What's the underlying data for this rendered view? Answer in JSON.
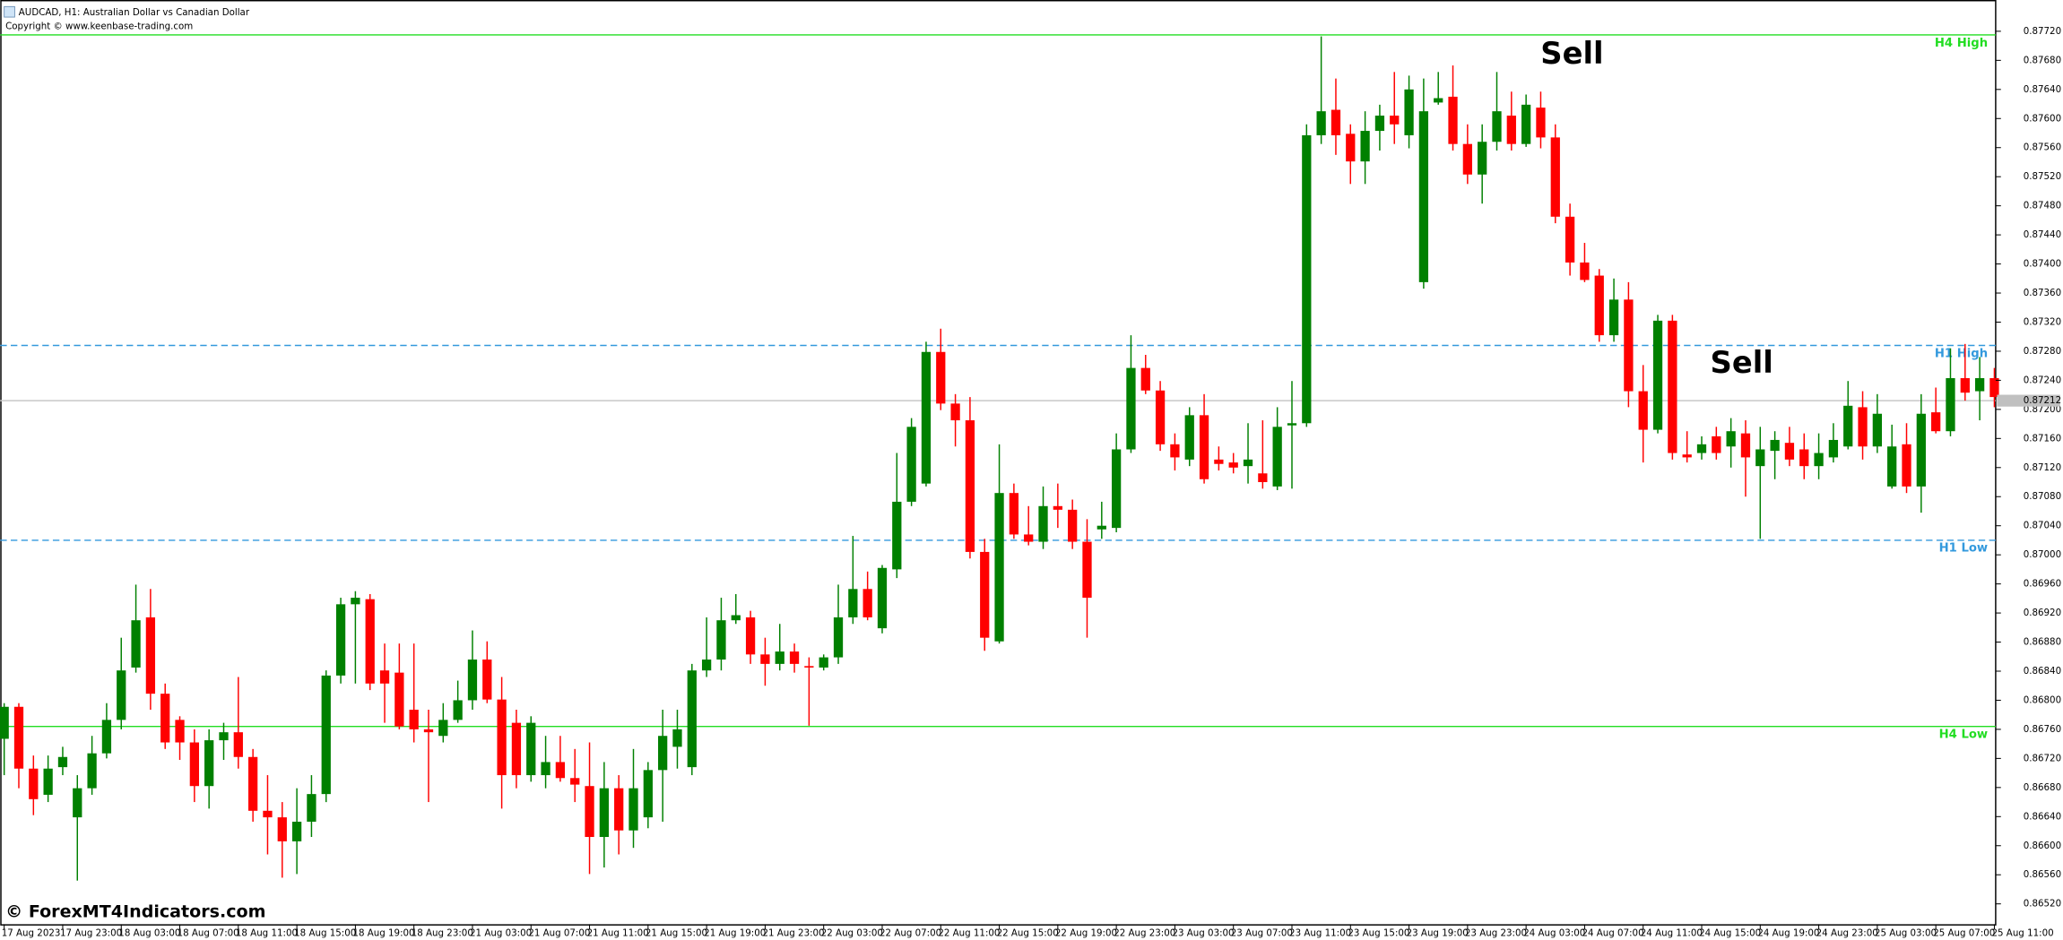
{
  "chart_data": {
    "type": "candlestick",
    "title": "AUDCAD, H1:  Australian Dollar vs Canadian Dollar",
    "subtitle": "Copyright © www.keenbase-trading.com",
    "watermark": "© ForexMT4Indicators.com",
    "sell_labels": [
      "Sell",
      "Sell"
    ],
    "up_color": "#008000",
    "down_color": "#ff0000",
    "categories": [
      "17 Aug 2023",
      null,
      null,
      null,
      "17 Aug 23:00",
      null,
      null,
      null,
      "18 Aug 03:00",
      null,
      null,
      null,
      "18 Aug 07:00",
      null,
      null,
      null,
      "18 Aug 11:00",
      null,
      null,
      null,
      "18 Aug 15:00",
      null,
      null,
      null,
      "18 Aug 19:00",
      null,
      null,
      null,
      "18 Aug 23:00",
      null,
      null,
      null,
      "21 Aug 03:00",
      null,
      null,
      null,
      "21 Aug 07:00",
      null,
      null,
      null,
      "21 Aug 11:00",
      null,
      null,
      null,
      "21 Aug 15:00",
      null,
      null,
      null,
      "21 Aug 19:00",
      null,
      null,
      null,
      "21 Aug 23:00",
      null,
      null,
      null,
      "22 Aug 03:00",
      null,
      null,
      null,
      "22 Aug 07:00",
      null,
      null,
      null,
      "22 Aug 11:00",
      null,
      null,
      null,
      "22 Aug 15:00",
      null,
      null,
      null,
      "22 Aug 19:00",
      null,
      null,
      null,
      "22 Aug 23:00",
      null,
      null,
      null,
      "23 Aug 03:00",
      null,
      null,
      null,
      "23 Aug 07:00",
      null,
      null,
      null,
      "23 Aug 11:00",
      null,
      null,
      null,
      "23 Aug 15:00",
      null,
      null,
      null,
      "23 Aug 19:00",
      null,
      null,
      null,
      "23 Aug 23:00",
      null,
      null,
      null,
      "24 Aug 03:00",
      null,
      null,
      null,
      "24 Aug 07:00",
      null,
      null,
      null,
      "24 Aug 11:00",
      null,
      null,
      null,
      "24 Aug 15:00",
      null,
      null,
      null,
      "24 Aug 19:00",
      null,
      null,
      null,
      "24 Aug 23:00",
      null,
      null,
      null,
      "25 Aug 03:00",
      null,
      null,
      null,
      "25 Aug 07:00",
      null,
      null,
      null,
      "25 Aug 11:00"
    ],
    "open": [
      0.86747,
      0.86791,
      0.86706,
      0.8667,
      0.86708,
      0.86639,
      0.86679,
      0.86727,
      0.86773,
      0.86845,
      0.86914,
      0.86809,
      0.86773,
      0.86742,
      0.86682,
      0.86745,
      0.86756,
      0.86722,
      0.86648,
      0.86639,
      0.86606,
      0.86633,
      0.86671,
      0.86834,
      0.86932,
      0.86939,
      0.86841,
      0.86838,
      0.86787,
      0.8676,
      0.86751,
      0.86773,
      0.868,
      0.86856,
      0.86801,
      0.86769,
      0.86697,
      0.86697,
      0.86715,
      0.86693,
      0.86682,
      0.86612,
      0.86679,
      0.86621,
      0.86639,
      0.86704,
      0.86736,
      0.86708,
      0.86841,
      0.86856,
      0.8691,
      0.86914,
      0.86863,
      0.8685,
      0.86867,
      0.86847,
      0.86845,
      0.86859,
      0.86914,
      0.86953,
      0.86899,
      0.8698,
      0.87073,
      0.87098,
      0.87279,
      0.87208,
      0.87185,
      0.87004,
      0.86881,
      0.87085,
      0.87028,
      0.87018,
      0.87067,
      0.87062,
      0.87018,
      0.87035,
      0.87037,
      0.87145,
      0.87257,
      0.87226,
      0.87152,
      0.87131,
      0.87192,
      0.87131,
      0.87127,
      0.87122,
      0.87112,
      0.87094,
      0.87178,
      0.87181,
      0.87577,
      0.87612,
      0.87579,
      0.87541,
      0.87583,
      0.87604,
      0.87577,
      0.87375,
      0.87622,
      0.8763,
      0.87565,
      0.87523,
      0.87568,
      0.87604,
      0.87565,
      0.87615,
      0.87574,
      0.87465,
      0.87402,
      0.87384,
      0.87302,
      0.87351,
      0.87225,
      0.87172,
      0.87322,
      0.87138,
      0.8714,
      0.87163,
      0.87149,
      0.87167,
      0.87122,
      0.87143,
      0.87154,
      0.87145,
      0.87122,
      0.87134,
      0.87149,
      0.87203,
      0.87149,
      0.87094,
      0.87152,
      0.87094,
      0.87196,
      0.8717,
      0.87243,
      0.87225,
      0.87243
    ],
    "high": [
      0.86796,
      0.86796,
      0.86724,
      0.86724,
      0.86736,
      0.86697,
      0.86751,
      0.86796,
      0.86886,
      0.86959,
      0.86953,
      0.86823,
      0.86778,
      0.8676,
      0.8676,
      0.86769,
      0.86832,
      0.86733,
      0.86697,
      0.8666,
      0.86679,
      0.86697,
      0.86841,
      0.86941,
      0.8695,
      0.86946,
      0.86878,
      0.86878,
      0.86878,
      0.86787,
      0.86796,
      0.86827,
      0.86896,
      0.86881,
      0.86832,
      0.86787,
      0.86778,
      0.86751,
      0.86751,
      0.86733,
      0.86742,
      0.86715,
      0.86697,
      0.86733,
      0.86715,
      0.86787,
      0.86787,
      0.8685,
      0.86914,
      0.86941,
      0.86946,
      0.86923,
      0.86886,
      0.86905,
      0.86878,
      0.86859,
      0.86863,
      0.86959,
      0.87026,
      0.86977,
      0.86986,
      0.8714,
      0.87188,
      0.87293,
      0.87311,
      0.87221,
      0.87217,
      0.87022,
      0.87152,
      0.87098,
      0.87067,
      0.87094,
      0.87098,
      0.87076,
      0.87049,
      0.87073,
      0.87167,
      0.87302,
      0.87275,
      0.87239,
      0.87167,
      0.87203,
      0.87221,
      0.87149,
      0.8714,
      0.87181,
      0.87185,
      0.87203,
      0.87239,
      0.87592,
      0.87713,
      0.87655,
      0.87592,
      0.8761,
      0.87619,
      0.87664,
      0.87659,
      0.87655,
      0.87664,
      0.87673,
      0.87592,
      0.87592,
      0.87664,
      0.87637,
      0.87633,
      0.87637,
      0.87592,
      0.87483,
      0.87429,
      0.87393,
      0.8738,
      0.87375,
      0.87261,
      0.8733,
      0.8733,
      0.8717,
      0.87163,
      0.87176,
      0.87188,
      0.87185,
      0.87176,
      0.8717,
      0.87176,
      0.87167,
      0.87167,
      0.87181,
      0.87239,
      0.87225,
      0.87221,
      0.87179,
      0.87181,
      0.87221,
      0.8723,
      0.87284,
      0.8729,
      0.87272,
      0.87257
    ],
    "low": [
      0.86697,
      0.86679,
      0.86642,
      0.8666,
      0.86697,
      0.86552,
      0.8667,
      0.8672,
      0.8676,
      0.86838,
      0.86787,
      0.86733,
      0.86718,
      0.8666,
      0.86651,
      0.86718,
      0.86706,
      0.86633,
      0.86588,
      0.86556,
      0.86561,
      0.86612,
      0.8666,
      0.86823,
      0.86823,
      0.86814,
      0.86769,
      0.8676,
      0.86742,
      0.8666,
      0.86742,
      0.86769,
      0.86787,
      0.86796,
      0.86651,
      0.86679,
      0.86688,
      0.86679,
      0.86688,
      0.8666,
      0.86561,
      0.8657,
      0.86588,
      0.86597,
      0.86624,
      0.86633,
      0.86706,
      0.86697,
      0.86832,
      0.86841,
      0.86905,
      0.8685,
      0.8682,
      0.86841,
      0.86838,
      0.86765,
      0.86841,
      0.8685,
      0.86905,
      0.8691,
      0.86892,
      0.86968,
      0.87067,
      0.87094,
      0.87199,
      0.87149,
      0.86995,
      0.86868,
      0.86878,
      0.87022,
      0.87013,
      0.87008,
      0.87037,
      0.87008,
      0.86886,
      0.87022,
      0.87031,
      0.8714,
      0.87221,
      0.87143,
      0.87116,
      0.87122,
      0.87098,
      0.87116,
      0.87112,
      0.87098,
      0.87091,
      0.87089,
      0.87091,
      0.87176,
      0.87565,
      0.8755,
      0.8751,
      0.8751,
      0.87556,
      0.87565,
      0.87559,
      0.87366,
      0.87619,
      0.87556,
      0.8751,
      0.87483,
      0.87556,
      0.87556,
      0.87561,
      0.87559,
      0.87456,
      0.87384,
      0.87375,
      0.87293,
      0.87293,
      0.87203,
      0.87127,
      0.87167,
      0.87131,
      0.87127,
      0.87131,
      0.87131,
      0.8712,
      0.8708,
      0.87022,
      0.87104,
      0.87122,
      0.87104,
      0.87104,
      0.87127,
      0.87145,
      0.87131,
      0.8714,
      0.87091,
      0.87085,
      0.87058,
      0.87167,
      0.87163,
      0.87212,
      0.87185,
      0.87203
    ],
    "close": [
      0.86791,
      0.86706,
      0.86664,
      0.86706,
      0.86722,
      0.86679,
      0.86727,
      0.86773,
      0.86841,
      0.8691,
      0.86809,
      0.86742,
      0.86742,
      0.86682,
      0.86745,
      0.86756,
      0.86722,
      0.86648,
      0.86639,
      0.86606,
      0.86633,
      0.86671,
      0.86834,
      0.86932,
      0.86941,
      0.86823,
      0.86823,
      0.86764,
      0.8676,
      0.86756,
      0.86773,
      0.868,
      0.86856,
      0.86801,
      0.86697,
      0.86697,
      0.86769,
      0.86715,
      0.86693,
      0.86684,
      0.86612,
      0.86679,
      0.86621,
      0.86679,
      0.86704,
      0.86751,
      0.8676,
      0.86841,
      0.86856,
      0.8691,
      0.86917,
      0.86863,
      0.8685,
      0.86867,
      0.8685,
      0.86845,
      0.86859,
      0.86914,
      0.86953,
      0.86914,
      0.86982,
      0.87073,
      0.87176,
      0.87279,
      0.87208,
      0.87185,
      0.87004,
      0.86886,
      0.87085,
      0.87028,
      0.87018,
      0.87067,
      0.87062,
      0.87018,
      0.86941,
      0.8704,
      0.87145,
      0.87257,
      0.87226,
      0.87152,
      0.87134,
      0.87192,
      0.87104,
      0.87125,
      0.8712,
      0.87131,
      0.871,
      0.87176,
      0.87181,
      0.87577,
      0.8761,
      0.87577,
      0.87541,
      0.87583,
      0.87604,
      0.87592,
      0.8764,
      0.8761,
      0.87628,
      0.87565,
      0.87523,
      0.87568,
      0.8761,
      0.87565,
      0.87619,
      0.87574,
      0.87465,
      0.87402,
      0.87378,
      0.87302,
      0.87351,
      0.87225,
      0.87172,
      0.87322,
      0.8714,
      0.87134,
      0.87152,
      0.8714,
      0.8717,
      0.87134,
      0.87145,
      0.87158,
      0.87131,
      0.87122,
      0.8714,
      0.87158,
      0.87205,
      0.87149,
      0.87194,
      0.87149,
      0.87094,
      0.87194,
      0.8717,
      0.87243,
      0.87223,
      0.87243,
      0.87217
    ],
    "ylim": [
      0.86492,
      0.87763
    ],
    "yticks": [
      {
        "value": 0.8772,
        "label": "0.87720"
      },
      {
        "value": 0.8768,
        "label": "0.87680"
      },
      {
        "value": 0.8764,
        "label": "0.87640"
      },
      {
        "value": 0.876,
        "label": "0.87600"
      },
      {
        "value": 0.8756,
        "label": "0.87560"
      },
      {
        "value": 0.8752,
        "label": "0.87520"
      },
      {
        "value": 0.8748,
        "label": "0.87480"
      },
      {
        "value": 0.8744,
        "label": "0.87440"
      },
      {
        "value": 0.874,
        "label": "0.87400"
      },
      {
        "value": 0.8736,
        "label": "0.87360"
      },
      {
        "value": 0.8732,
        "label": "0.87320"
      },
      {
        "value": 0.8728,
        "label": "0.87280"
      },
      {
        "value": 0.8724,
        "label": "0.87240"
      },
      {
        "value": 0.872,
        "label": "0.87200"
      },
      {
        "value": 0.8716,
        "label": "0.87160"
      },
      {
        "value": 0.8712,
        "label": "0.87120"
      },
      {
        "value": 0.8708,
        "label": "0.87080"
      },
      {
        "value": 0.8704,
        "label": "0.87040"
      },
      {
        "value": 0.87,
        "label": "0.87000"
      },
      {
        "value": 0.8696,
        "label": "0.86960"
      },
      {
        "value": 0.8692,
        "label": "0.86920"
      },
      {
        "value": 0.8688,
        "label": "0.86880"
      },
      {
        "value": 0.8684,
        "label": "0.86840"
      },
      {
        "value": 0.868,
        "label": "0.86800"
      },
      {
        "value": 0.8676,
        "label": "0.86760"
      },
      {
        "value": 0.8672,
        "label": "0.86720"
      },
      {
        "value": 0.8668,
        "label": "0.86680"
      },
      {
        "value": 0.8664,
        "label": "0.86640"
      },
      {
        "value": 0.866,
        "label": "0.86600"
      },
      {
        "value": 0.8656,
        "label": "0.86560"
      },
      {
        "value": 0.8652,
        "label": "0.86520"
      }
    ],
    "last_price": 0.87212,
    "levels": [
      {
        "name": "H4 High",
        "value": 0.87715,
        "color": "#22dd22",
        "dashed": false
      },
      {
        "name": "H1 High",
        "value": 0.87288,
        "color": "#3399dd",
        "dashed": true
      },
      {
        "name": "H1 Low",
        "value": 0.8702,
        "color": "#3399dd",
        "dashed": true
      },
      {
        "name": "H4 Low",
        "value": 0.86764,
        "color": "#22dd22",
        "dashed": false
      }
    ]
  }
}
